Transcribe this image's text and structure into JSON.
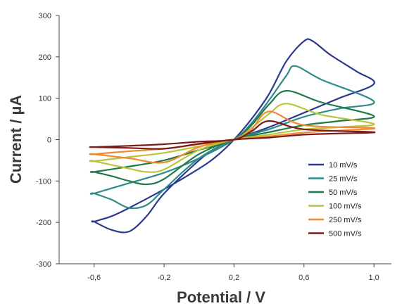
{
  "chart_data": {
    "type": "line",
    "title": "",
    "xlabel": "Potential / V",
    "ylabel": "Current / µA",
    "xlim": [
      -0.8,
      1.1
    ],
    "ylim": [
      -300,
      300
    ],
    "x_ticks": [
      -0.6,
      -0.2,
      0.2,
      0.6,
      1.0
    ],
    "x_tick_labels": [
      "-0,6",
      "-0,2",
      "0,2",
      "0,6",
      "1,0"
    ],
    "y_ticks": [
      300,
      200,
      100,
      0,
      -100,
      -200,
      -300
    ],
    "y_tick_labels": [
      "300",
      "200",
      "100",
      "0",
      "-100",
      "-200",
      "-300"
    ],
    "grid": false,
    "legend_position": "right",
    "series": [
      {
        "name": "10 mV/s",
        "color": "#2b3a8f",
        "x": [
          -0.6,
          -0.5,
          -0.4,
          -0.2,
          0.0,
          0.1,
          0.2,
          0.3,
          0.4,
          0.5,
          0.6,
          0.65,
          0.75,
          0.9,
          1.0,
          0.8,
          0.6,
          0.4,
          0.2,
          0.1,
          0.0,
          -0.2,
          -0.3,
          -0.4,
          -0.5,
          -0.6
        ],
        "y": [
          -198,
          -185,
          -165,
          -120,
          -70,
          -40,
          0,
          50,
          110,
          190,
          238,
          238,
          205,
          165,
          135,
          100,
          65,
          30,
          0,
          -20,
          -50,
          -130,
          -185,
          -222,
          -218,
          -198
        ]
      },
      {
        "name": "25 mV/s",
        "color": "#2e8b8b",
        "x": [
          -0.6,
          -0.4,
          -0.2,
          0.0,
          0.2,
          0.3,
          0.4,
          0.5,
          0.55,
          0.7,
          1.0,
          0.8,
          0.6,
          0.4,
          0.2,
          0.0,
          -0.2,
          -0.3,
          -0.4,
          -0.5,
          -0.6
        ],
        "y": [
          -130,
          -105,
          -80,
          -45,
          0,
          40,
          95,
          155,
          178,
          145,
          92,
          75,
          55,
          25,
          0,
          -45,
          -120,
          -158,
          -165,
          -145,
          -130
        ]
      },
      {
        "name": "50 mV/s",
        "color": "#1f7a4a",
        "x": [
          -0.6,
          -0.4,
          -0.2,
          0.0,
          0.2,
          0.3,
          0.4,
          0.5,
          0.7,
          1.0,
          0.8,
          0.6,
          0.4,
          0.2,
          0.0,
          -0.2,
          -0.3,
          -0.4,
          -0.5,
          -0.6
        ],
        "y": [
          -78,
          -65,
          -50,
          -25,
          0,
          35,
          85,
          118,
          90,
          57,
          45,
          35,
          18,
          0,
          -35,
          -95,
          -108,
          -100,
          -88,
          -78
        ]
      },
      {
        "name": "100 mV/s",
        "color": "#bcc43a",
        "x": [
          -0.6,
          -0.4,
          -0.2,
          0.0,
          0.2,
          0.3,
          0.4,
          0.5,
          0.7,
          1.0,
          0.8,
          0.6,
          0.4,
          0.2,
          0.0,
          -0.2,
          -0.3,
          -0.4,
          -0.6
        ],
        "y": [
          -52,
          -42,
          -32,
          -16,
          0,
          28,
          62,
          87,
          60,
          38,
          30,
          25,
          12,
          0,
          -25,
          -72,
          -78,
          -70,
          -52
        ]
      },
      {
        "name": "250 mV/s",
        "color": "#f08a30",
        "x": [
          -0.6,
          -0.4,
          -0.2,
          0.0,
          0.2,
          0.3,
          0.4,
          0.6,
          1.0,
          0.8,
          0.6,
          0.4,
          0.2,
          0.0,
          -0.2,
          -0.4,
          -0.6
        ],
        "y": [
          -35,
          -28,
          -22,
          -11,
          0,
          25,
          68,
          35,
          28,
          22,
          17,
          8,
          0,
          -18,
          -55,
          -45,
          -35
        ]
      },
      {
        "name": "500 mV/s",
        "color": "#7a1a1a",
        "x": [
          -0.6,
          -0.4,
          -0.2,
          0.0,
          0.2,
          0.3,
          0.4,
          0.6,
          1.0,
          0.8,
          0.6,
          0.4,
          0.2,
          0.0,
          -0.2,
          -0.4,
          -0.6
        ],
        "y": [
          -18,
          -15,
          -11,
          -5,
          0,
          20,
          45,
          25,
          18,
          15,
          12,
          5,
          0,
          -10,
          -22,
          -20,
          -18
        ]
      }
    ]
  }
}
